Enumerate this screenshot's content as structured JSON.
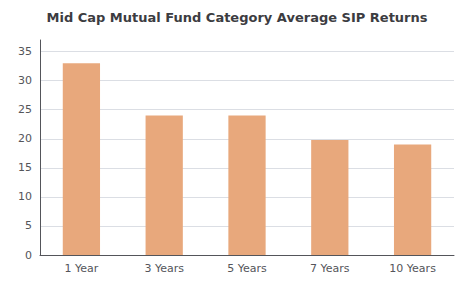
{
  "chart_data": {
    "type": "bar",
    "title": "Mid Cap Mutual Fund Category Average SIP Returns",
    "categories": [
      "1 Year",
      "3 Years",
      "5 Years",
      "7 Years",
      "10 Years"
    ],
    "values": [
      33.0,
      24.0,
      24.0,
      19.8,
      19.0
    ],
    "color": "#E8A87C",
    "ylim": [
      0,
      37
    ],
    "yticks": [
      0,
      5,
      10,
      15,
      20,
      25,
      30,
      35
    ],
    "grid": true
  }
}
